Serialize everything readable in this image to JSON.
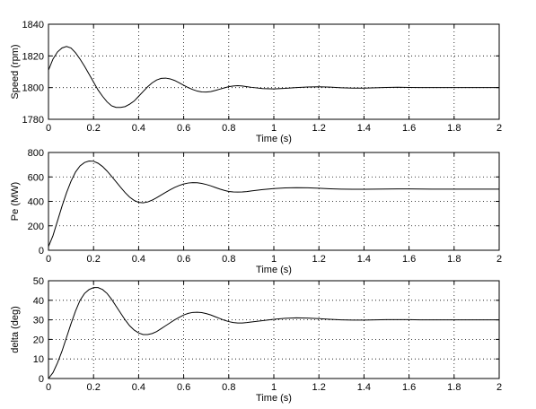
{
  "chart_data": [
    {
      "type": "line",
      "xlabel": "Time (s)",
      "ylabel": "Speed (rpm)",
      "xlim": [
        0,
        2
      ],
      "ylim": [
        1780,
        1840
      ],
      "xticks": [
        "0",
        "0.2",
        "0.4",
        "0.6",
        "0.8",
        "1",
        "1.2",
        "1.4",
        "1.6",
        "1.8",
        "2"
      ],
      "yticks": [
        "1780",
        "1800",
        "1820",
        "1840"
      ],
      "grid": true,
      "series": [
        {
          "x": [
            0,
            0.02,
            0.04,
            0.06,
            0.08,
            0.1,
            0.12,
            0.14,
            0.16,
            0.18,
            0.2,
            0.22,
            0.24,
            0.26,
            0.28,
            0.3,
            0.32,
            0.34,
            0.36,
            0.38,
            0.4,
            0.42,
            0.44,
            0.46,
            0.48,
            0.5,
            0.52,
            0.54,
            0.56,
            0.58,
            0.6,
            0.62,
            0.64,
            0.66,
            0.68,
            0.7,
            0.72,
            0.74,
            0.76,
            0.78,
            0.8,
            0.82,
            0.84,
            0.86,
            0.88,
            0.9,
            0.95,
            1.0,
            1.05,
            1.1,
            1.15,
            1.2,
            1.25,
            1.3,
            1.35,
            1.4,
            1.45,
            1.5,
            1.55,
            1.6,
            1.65,
            1.7,
            1.75,
            1.8,
            1.9,
            2.0
          ],
          "y": [
            1811,
            1818,
            1822.5,
            1825,
            1826,
            1825,
            1822,
            1818,
            1813.5,
            1808.5,
            1803.5,
            1798.5,
            1794.5,
            1791,
            1788.5,
            1787.5,
            1787.5,
            1788,
            1789.5,
            1791.5,
            1794.5,
            1797.5,
            1800.5,
            1803,
            1804.8,
            1805.8,
            1806,
            1805.5,
            1804.5,
            1803,
            1801.5,
            1800,
            1798.8,
            1797.8,
            1797.3,
            1797.2,
            1797.5,
            1798.2,
            1799,
            1799.8,
            1800.6,
            1801,
            1801.2,
            1801,
            1800.6,
            1800.2,
            1799.4,
            1799.2,
            1799.5,
            1800,
            1800.4,
            1800.5,
            1800.3,
            1799.9,
            1799.7,
            1799.7,
            1799.9,
            1800.1,
            1800.2,
            1800.1,
            1800,
            1800,
            1800,
            1800,
            1800,
            1800
          ]
        }
      ]
    },
    {
      "type": "line",
      "xlabel": "Time (s)",
      "ylabel": "Pe (MW)",
      "xlim": [
        0,
        2
      ],
      "ylim": [
        0,
        800
      ],
      "xticks": [
        "0",
        "0.2",
        "0.4",
        "0.6",
        "0.8",
        "1",
        "1.2",
        "1.4",
        "1.6",
        "1.8",
        "2"
      ],
      "yticks": [
        "0",
        "200",
        "400",
        "600",
        "800"
      ],
      "grid": true,
      "series": [
        {
          "x": [
            0,
            0.02,
            0.04,
            0.06,
            0.08,
            0.1,
            0.12,
            0.14,
            0.16,
            0.18,
            0.2,
            0.22,
            0.24,
            0.26,
            0.28,
            0.3,
            0.32,
            0.34,
            0.36,
            0.38,
            0.4,
            0.42,
            0.44,
            0.46,
            0.48,
            0.5,
            0.52,
            0.54,
            0.56,
            0.58,
            0.6,
            0.62,
            0.64,
            0.66,
            0.68,
            0.7,
            0.72,
            0.74,
            0.76,
            0.78,
            0.8,
            0.82,
            0.84,
            0.86,
            0.88,
            0.9,
            0.95,
            1.0,
            1.05,
            1.1,
            1.15,
            1.2,
            1.25,
            1.3,
            1.35,
            1.4,
            1.45,
            1.5,
            1.55,
            1.6,
            1.65,
            1.7,
            1.75,
            1.8,
            1.9,
            2.0
          ],
          "y": [
            30,
            120,
            240,
            360,
            470,
            565,
            640,
            690,
            718,
            730,
            728,
            712,
            685,
            648,
            605,
            560,
            515,
            472,
            435,
            408,
            392,
            388,
            395,
            410,
            430,
            452,
            474,
            495,
            514,
            530,
            542,
            550,
            553,
            552,
            547,
            538,
            527,
            514,
            501,
            490,
            481,
            477,
            476,
            477,
            480,
            485,
            496,
            505,
            510,
            512,
            511,
            507,
            503,
            500,
            499,
            499,
            500,
            501,
            502,
            502,
            501,
            500,
            500,
            500,
            500,
            500
          ]
        }
      ]
    },
    {
      "type": "line",
      "xlabel": "Time (s)",
      "ylabel": "delta (deg)",
      "xlim": [
        0,
        2
      ],
      "ylim": [
        0,
        50
      ],
      "xticks": [
        "0",
        "0.2",
        "0.4",
        "0.6",
        "0.8",
        "1",
        "1.2",
        "1.4",
        "1.6",
        "1.8",
        "2"
      ],
      "yticks": [
        "0",
        "10",
        "20",
        "30",
        "40",
        "50"
      ],
      "grid": true,
      "series": [
        {
          "x": [
            0,
            0.02,
            0.04,
            0.06,
            0.08,
            0.1,
            0.12,
            0.14,
            0.16,
            0.18,
            0.2,
            0.22,
            0.24,
            0.26,
            0.28,
            0.3,
            0.32,
            0.34,
            0.36,
            0.38,
            0.4,
            0.42,
            0.44,
            0.46,
            0.48,
            0.5,
            0.52,
            0.54,
            0.56,
            0.58,
            0.6,
            0.62,
            0.64,
            0.66,
            0.68,
            0.7,
            0.72,
            0.74,
            0.76,
            0.78,
            0.8,
            0.82,
            0.84,
            0.86,
            0.88,
            0.9,
            0.95,
            1.0,
            1.05,
            1.1,
            1.15,
            1.2,
            1.25,
            1.3,
            1.35,
            1.4,
            1.45,
            1.5,
            1.55,
            1.6,
            1.65,
            1.7,
            1.75,
            1.8,
            1.9,
            2.0
          ],
          "y": [
            0,
            3,
            8,
            14,
            21,
            28,
            34.5,
            40,
            43.5,
            45.5,
            46.5,
            46.5,
            45.5,
            43.5,
            40.5,
            37,
            33.5,
            30,
            27,
            24.8,
            23.3,
            22.5,
            22.5,
            23,
            24,
            25.5,
            27,
            28.5,
            30,
            31.3,
            32.5,
            33.3,
            33.8,
            33.9,
            33.7,
            33.2,
            32.5,
            31.6,
            30.7,
            29.8,
            29.1,
            28.6,
            28.4,
            28.4,
            28.6,
            28.9,
            29.6,
            30.3,
            30.8,
            31,
            30.9,
            30.6,
            30.3,
            30,
            29.9,
            29.9,
            30,
            30.1,
            30.1,
            30.1,
            30,
            30,
            30,
            30,
            30,
            30
          ]
        }
      ]
    }
  ]
}
